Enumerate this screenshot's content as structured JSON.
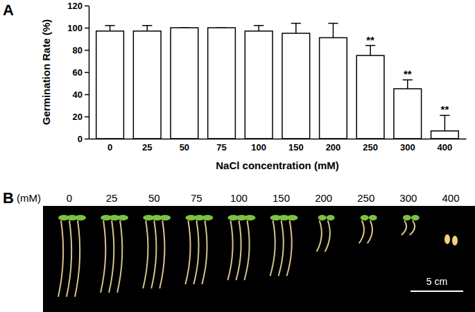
{
  "chart_data": {
    "type": "bar",
    "panel_label": "A",
    "x_label": "NaCl concentration (mM)",
    "y_label": "Germination Rate (%)",
    "categories": [
      "0",
      "25",
      "50",
      "75",
      "100",
      "150",
      "200",
      "250",
      "300",
      "400"
    ],
    "values": [
      97,
      97,
      100,
      100,
      97,
      95,
      91,
      75,
      45,
      7
    ],
    "errors": [
      5,
      5,
      0,
      0,
      5,
      9,
      13,
      9,
      8,
      14
    ],
    "significance": [
      null,
      null,
      null,
      null,
      null,
      null,
      null,
      "**",
      "**",
      "**"
    ],
    "color": "#ffffff",
    "ylim": [
      0,
      120
    ],
    "yticks": [
      0,
      20,
      40,
      60,
      80,
      100,
      120
    ],
    "grid": false
  },
  "photo_panel": {
    "panel_label": "B",
    "unit_label": "(mM)",
    "concentrations": [
      0,
      25,
      50,
      75,
      100,
      150,
      200,
      250,
      300,
      400
    ],
    "scale_bar": "5 cm"
  }
}
